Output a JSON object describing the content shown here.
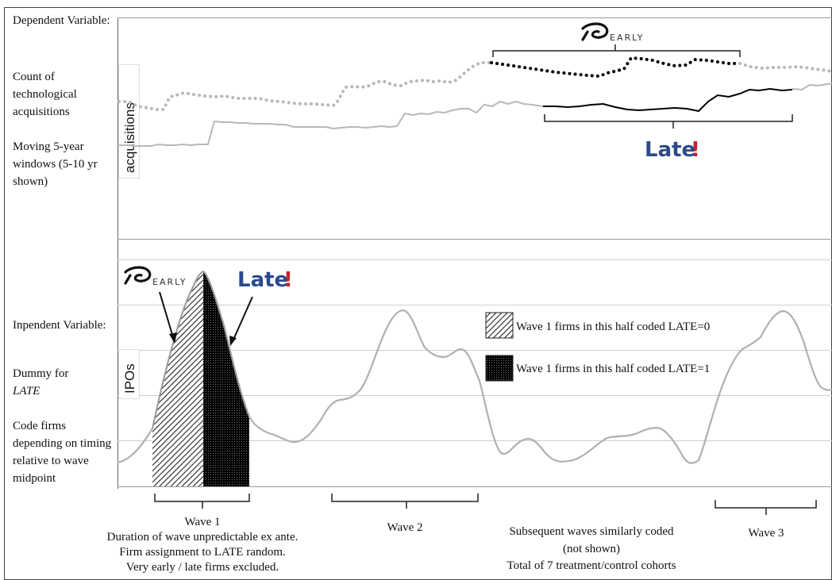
{
  "left_labels": {
    "dependent_title": "Dependent Variable:",
    "count": "Count of technological acquisitions",
    "windows": "Moving 5-year windows (5-10 yr shown)",
    "independent_title": "Inpendent Variable:",
    "dummy_prefix": "Dummy for",
    "dummy_var": "LATE",
    "code": "Code firms depending on timing relative to wave midpoint"
  },
  "panels": {
    "top_axis_label": "acquisitions",
    "bottom_axis_label": "IPOs"
  },
  "brands": {
    "early_text": "EARLY",
    "late_text": "Late",
    "late_mark": "!",
    "late_color": "#2b4a8a",
    "late_mark_color": "#c8202c"
  },
  "legend": {
    "hatched": "Wave 1 firms in this half coded LATE=0",
    "solid": "Wave 1 firms in this half coded LATE=1"
  },
  "waves": {
    "wave1": "Wave 1",
    "wave1_note_1": "Duration of wave unpredictable ex ante.",
    "wave1_note_2": "Firm assignment to LATE random.",
    "wave1_note_3": "Very early / late firms excluded.",
    "wave2": "Wave 2",
    "wave3": "Wave 3",
    "subsequent_1": "Subsequent waves similarly coded",
    "subsequent_2": "(not shown)",
    "subsequent_3": "Total of 7 treatment/control cohorts"
  }
}
